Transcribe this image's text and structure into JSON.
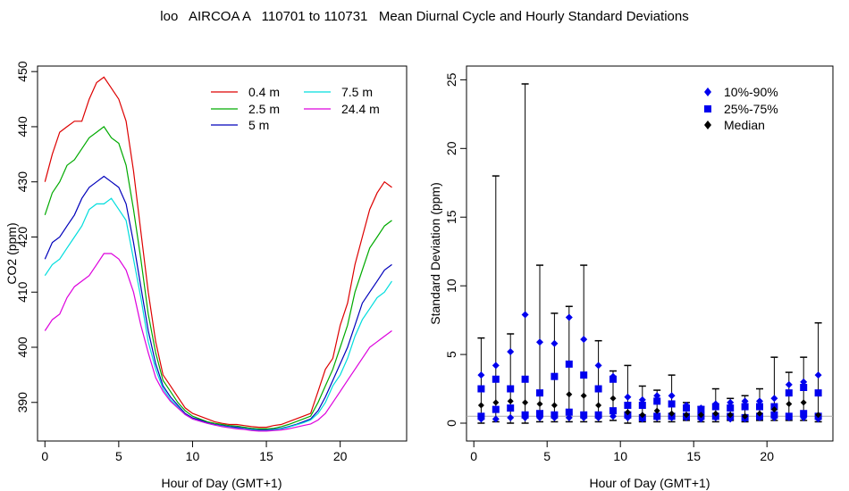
{
  "title": "loo   AIRCOA A   110701 to 110731   Mean Diurnal Cycle and Hourly Standard Deviations",
  "chart_data": [
    {
      "type": "line",
      "xlabel": "Hour of Day (GMT+1)",
      "ylabel": "CO2 (ppm)",
      "xlim": [
        -0.5,
        24.5
      ],
      "ylim": [
        383,
        451
      ],
      "xticks": [
        "0",
        "5",
        "10",
        "15",
        "20"
      ],
      "yticks": [
        "390",
        "400",
        "410",
        "420",
        "430",
        "440",
        "450"
      ],
      "grid": false,
      "legend_position": "top-right",
      "x": [
        0,
        0.5,
        1,
        1.5,
        2,
        2.5,
        3,
        3.5,
        4,
        4.5,
        5,
        5.5,
        6,
        6.5,
        7,
        7.5,
        8,
        8.5,
        9,
        9.5,
        10,
        10.5,
        11,
        11.5,
        12,
        12.5,
        13,
        13.5,
        14,
        14.5,
        15,
        15.5,
        16,
        16.5,
        17,
        17.5,
        18,
        18.5,
        19,
        19.5,
        20,
        20.5,
        21,
        21.5,
        22,
        22.5,
        23,
        23.5
      ],
      "series": [
        {
          "name": "0.4 m",
          "color": "#dd0000",
          "values": [
            430,
            435,
            439,
            440,
            441,
            441,
            445,
            448,
            449,
            447,
            445,
            441,
            432,
            421,
            410,
            401,
            395,
            393,
            391,
            389,
            388,
            387.5,
            387,
            386.5,
            386.2,
            386,
            386,
            385.8,
            385.6,
            385.5,
            385.5,
            385.8,
            386,
            386.5,
            387,
            387.5,
            388,
            392,
            396,
            398,
            404,
            408,
            415,
            420,
            425,
            428,
            430,
            429
          ]
        },
        {
          "name": "2.5 m",
          "color": "#00aa00",
          "values": [
            424,
            428,
            430,
            433,
            434,
            436,
            438,
            439,
            440,
            438,
            437,
            433,
            425,
            416,
            406,
            399,
            394,
            392,
            390,
            388.5,
            387.5,
            387,
            386.5,
            386.2,
            386,
            385.8,
            385.7,
            385.5,
            385.3,
            385.2,
            385.2,
            385.3,
            385.6,
            386,
            386.5,
            387,
            387.5,
            390,
            393,
            396,
            400,
            404,
            410,
            414,
            418,
            420,
            422,
            423
          ]
        },
        {
          "name": "5 m",
          "color": "#0000bb",
          "values": [
            416,
            419,
            420,
            422,
            424,
            427,
            429,
            430,
            431,
            430,
            429,
            426,
            419,
            411,
            403,
            397,
            393,
            391,
            389.5,
            388,
            387.2,
            386.8,
            386.3,
            386,
            385.8,
            385.6,
            385.5,
            385.3,
            385.1,
            385,
            385,
            385.1,
            385.3,
            385.6,
            386,
            386.5,
            387,
            388.5,
            391,
            394,
            397,
            400,
            404,
            408,
            410,
            412,
            414,
            415
          ]
        },
        {
          "name": "7.5 m",
          "color": "#00dddd",
          "values": [
            413,
            415,
            416,
            418,
            420,
            422,
            425,
            426,
            426,
            427,
            425,
            423,
            416,
            409,
            401,
            396,
            392.5,
            390.5,
            389.2,
            387.8,
            387,
            386.6,
            386.2,
            385.9,
            385.7,
            385.5,
            385.3,
            385.2,
            385,
            384.9,
            384.9,
            385,
            385.2,
            385.5,
            385.9,
            386.3,
            386.8,
            388,
            390,
            393,
            395,
            398,
            402,
            405,
            407,
            409,
            410,
            412
          ]
        },
        {
          "name": "24.4 m",
          "color": "#dd00dd",
          "values": [
            403,
            405,
            406,
            409,
            411,
            412,
            413,
            415,
            417,
            417,
            416,
            414,
            410,
            404,
            399,
            394.5,
            392,
            390.2,
            389,
            387.8,
            387,
            386.6,
            386.2,
            385.9,
            385.6,
            385.4,
            385.2,
            385.1,
            384.9,
            384.8,
            384.8,
            384.9,
            385,
            385.2,
            385.5,
            385.8,
            386.1,
            386.8,
            388,
            390,
            392,
            394,
            396,
            398,
            400,
            401,
            402,
            403
          ]
        }
      ]
    },
    {
      "type": "scatter",
      "xlabel": "Hour of Day (GMT+1)",
      "ylabel": "Standard Deviation (ppm)",
      "xlim": [
        -0.5,
        24.5
      ],
      "ylim": [
        -1.3,
        26
      ],
      "xticks": [
        "0",
        "5",
        "10",
        "15",
        "20"
      ],
      "yticks": [
        "0",
        "5",
        "10",
        "15",
        "20",
        "25"
      ],
      "grid": false,
      "reference_line_y": 0.5,
      "legend_position": "top-right",
      "legend": [
        {
          "label": "10%-90%",
          "marker": "diamond",
          "color": "#0000ee"
        },
        {
          "label": "25%-75%",
          "marker": "square",
          "color": "#0000ee"
        },
        {
          "label": "Median",
          "marker": "diamond",
          "color": "#000000"
        }
      ],
      "x": [
        0.5,
        1.5,
        2.5,
        3.5,
        4.5,
        5.5,
        6.5,
        7.5,
        8.5,
        9.5,
        10.5,
        11.5,
        12.5,
        13.5,
        14.5,
        15.5,
        16.5,
        17.5,
        18.5,
        19.5,
        20.5,
        21.5,
        22.5,
        23.5
      ],
      "max": [
        6.2,
        18,
        6.5,
        24.7,
        11.5,
        8,
        8.5,
        11.5,
        6,
        3.8,
        4.2,
        2.7,
        2.4,
        3.5,
        1.5,
        1.2,
        2.5,
        1.8,
        2,
        2.5,
        4.8,
        3.7,
        4.8,
        7.3
      ],
      "p90": [
        3.5,
        4.2,
        5.2,
        7.9,
        5.9,
        5.8,
        7.7,
        6.1,
        4.2,
        3.4,
        1.9,
        1.7,
        2,
        2,
        1.3,
        1.1,
        1.4,
        1.5,
        1.6,
        1.6,
        1.8,
        2.8,
        3,
        3.5
      ],
      "p75": [
        2.5,
        3.2,
        2.5,
        3.2,
        2.2,
        3.4,
        4.3,
        3.5,
        2.5,
        3.2,
        1.3,
        1.3,
        1.6,
        1.4,
        1.1,
        1,
        1.2,
        1.1,
        1.2,
        1.2,
        1.2,
        2.2,
        2.6,
        2.2
      ],
      "median": [
        1.3,
        1.5,
        1.6,
        1.5,
        1.4,
        1.3,
        2.1,
        2,
        1.3,
        1.8,
        0.8,
        0.6,
        0.9,
        0.7,
        0.6,
        0.6,
        0.7,
        0.6,
        0.5,
        0.7,
        1,
        1.4,
        1.5,
        0.6
      ],
      "p25": [
        0.5,
        1,
        1.1,
        0.6,
        0.7,
        0.6,
        0.8,
        0.6,
        0.6,
        0.9,
        0.6,
        0.4,
        0.5,
        0.5,
        0.5,
        0.5,
        0.5,
        0.5,
        0.4,
        0.5,
        0.6,
        0.5,
        0.7,
        0.5
      ],
      "p10": [
        0.3,
        0.3,
        0.4,
        0.4,
        0.4,
        0.4,
        0.4,
        0.4,
        0.4,
        0.5,
        0.4,
        0.3,
        0.4,
        0.4,
        0.4,
        0.3,
        0.4,
        0.3,
        0.3,
        0.4,
        0.4,
        0.4,
        0.4,
        0.3
      ],
      "min": [
        0,
        0.1,
        0,
        0,
        0.1,
        0.1,
        0.1,
        0.1,
        0.1,
        0.2,
        0,
        0.1,
        0.1,
        0.1,
        0.2,
        0.1,
        0.1,
        0.2,
        0.1,
        0.2,
        0.2,
        0.2,
        0.2,
        0.1
      ]
    }
  ]
}
